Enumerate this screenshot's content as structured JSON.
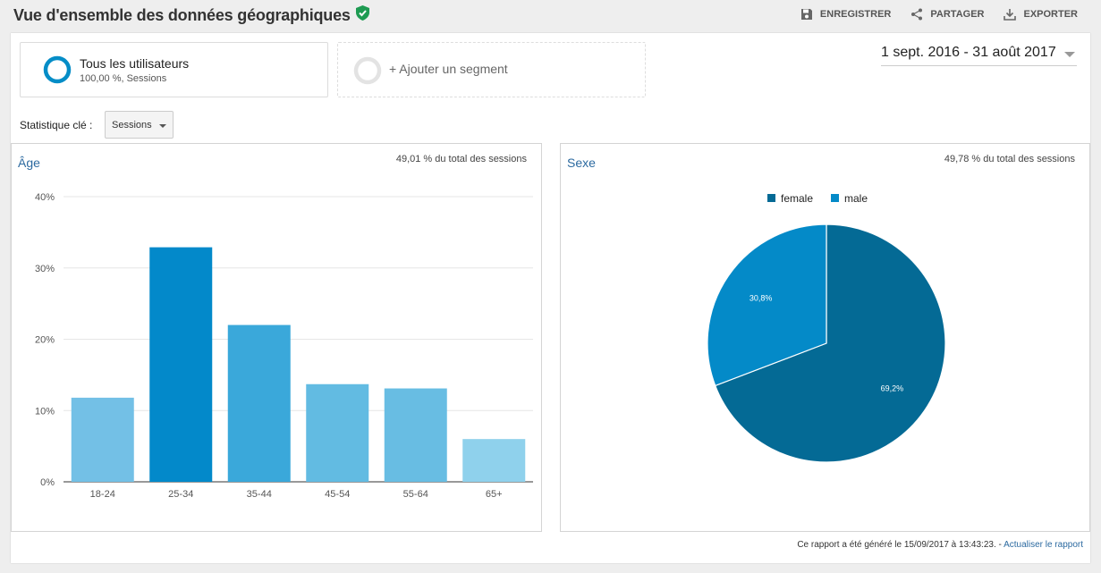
{
  "header": {
    "title": "Vue d'ensemble des données géographiques",
    "actions": {
      "save": "ENREGISTRER",
      "share": "PARTAGER",
      "export": "EXPORTER"
    }
  },
  "segments": [
    {
      "name": "Tous les utilisateurs",
      "sub": "100,00 %, Sessions"
    },
    {
      "name": "+ Ajouter un segment"
    }
  ],
  "date_range": "1 sept. 2016 - 31 août 2017",
  "metric": {
    "label": "Statistique clé :",
    "selected": "Sessions"
  },
  "panels": {
    "age": {
      "title": "Âge",
      "note": "49,01 % du total des sessions"
    },
    "sex": {
      "title": "Sexe",
      "note": "49,78 % du total des sessions"
    }
  },
  "footer": {
    "text": "Ce rapport a été généré le 15/09/2017 à 13:43:23. - ",
    "link": "Actualiser le rapport"
  },
  "colors": {
    "accent": "#2c6aa0",
    "ok_badge": "#1e9b52"
  },
  "chart_data": [
    {
      "type": "bar",
      "categories": [
        "18-24",
        "25-34",
        "35-44",
        "45-54",
        "55-64",
        "65+"
      ],
      "values": [
        11.8,
        32.9,
        22.0,
        13.7,
        13.1,
        6.0
      ],
      "colors": [
        "#73c0e6",
        "#0389ca",
        "#3aa8da",
        "#62bbe2",
        "#68bde3",
        "#8fd1ec"
      ],
      "yticks": [
        "0%",
        "10%",
        "20%",
        "30%",
        "40%"
      ],
      "ylim": [
        0,
        40
      ],
      "grid": true
    },
    {
      "type": "pie",
      "legend_position": "top",
      "series": [
        {
          "name": "female",
          "value": 69.2,
          "label": "69,2%",
          "color": "#046a95"
        },
        {
          "name": "male",
          "value": 30.8,
          "label": "30,8%",
          "color": "#048ac8"
        }
      ]
    }
  ]
}
